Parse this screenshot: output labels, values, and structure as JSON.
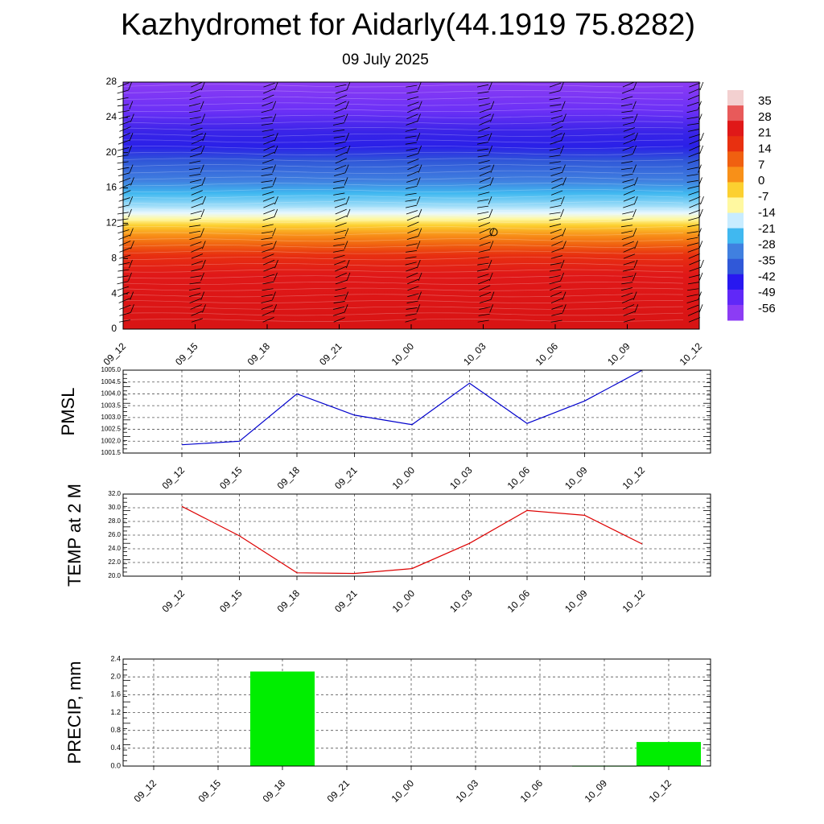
{
  "header": {
    "title": "Kazhydromet for Aidarly(44.1919 75.8282)",
    "subtitle": "09 July 2025"
  },
  "chart_data": [
    {
      "type": "heatmap",
      "y_ticks": [
        "0",
        "4",
        "8",
        "12",
        "16",
        "20",
        "24",
        "28"
      ],
      "ylim": [
        0,
        28
      ],
      "x_ticks": [
        "09_12",
        "09_15",
        "09_18",
        "09_21",
        "10_00",
        "10_03",
        "10_06",
        "10_09",
        "10_12"
      ],
      "colorbar_labels": [
        "35",
        "28",
        "21",
        "14",
        "7",
        "0",
        "-7",
        "-14",
        "-21",
        "-28",
        "-35",
        "-42",
        "-49",
        "-56"
      ],
      "colorbar_colors": [
        "#f3d0d0",
        "#e85a5a",
        "#e01818",
        "#e83010",
        "#f06010",
        "#f89018",
        "#fcd030",
        "#fff8a0",
        "#c8ecff",
        "#40b8f0",
        "#4080e0",
        "#3058d8",
        "#2818f0",
        "#6028f8",
        "#8c3cf4"
      ]
    },
    {
      "type": "line",
      "ylabel": "PMSL",
      "x": [
        "09_12",
        "09_15",
        "09_18",
        "09_21",
        "10_00",
        "10_03",
        "10_06",
        "10_09",
        "10_12"
      ],
      "series": [
        {
          "values": [
            1001.85,
            1002.0,
            1004.0,
            1003.1,
            1002.7,
            1004.45,
            1002.75,
            1003.7,
            1005.0
          ]
        }
      ],
      "ylim": [
        1001.5,
        1005.0
      ],
      "y_ticks": [
        "1001.5",
        "1002.0",
        "1002.5",
        "1003.0",
        "1003.5",
        "1004.0",
        "1004.5",
        "1005.0"
      ],
      "color": "#0000cc",
      "grid": true
    },
    {
      "type": "line",
      "ylabel": "TEMP at 2 M",
      "x": [
        "09_12",
        "09_15",
        "09_18",
        "09_21",
        "10_00",
        "10_03",
        "10_06",
        "10_09",
        "10_12"
      ],
      "series": [
        {
          "values": [
            30.2,
            25.9,
            20.5,
            20.4,
            21.1,
            24.8,
            29.6,
            28.9,
            24.7
          ]
        }
      ],
      "ylim": [
        20.0,
        32.0
      ],
      "y_ticks": [
        "20.0",
        "22.0",
        "24.0",
        "26.0",
        "28.0",
        "30.0",
        "32.0"
      ],
      "color": "#dd0000",
      "grid": true
    },
    {
      "type": "bar",
      "ylabel": "PRECIP, mm",
      "categories": [
        "09_12",
        "09_15",
        "09_18",
        "09_21",
        "10_00",
        "10_03",
        "10_06",
        "10_09",
        "10_12"
      ],
      "values": [
        0,
        0,
        2.12,
        0,
        0,
        0,
        0,
        0.01,
        0.54
      ],
      "ylim": [
        0,
        2.4
      ],
      "y_ticks": [
        "0.0",
        "0.4",
        "0.8",
        "1.2",
        "1.6",
        "2.0",
        "2.4"
      ],
      "color": "#00ee00",
      "grid": true
    }
  ]
}
